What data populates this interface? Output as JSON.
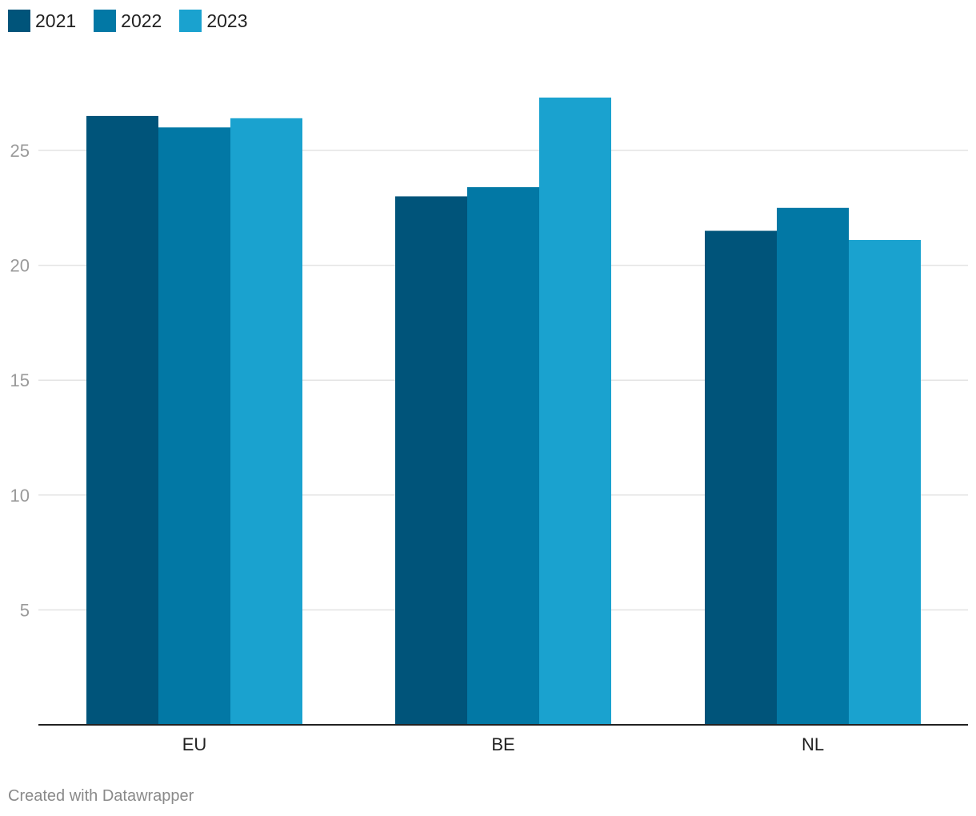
{
  "footer": {
    "credit": "Created with Datawrapper"
  },
  "chart_data": {
    "type": "bar",
    "categories": [
      "EU",
      "BE",
      "NL"
    ],
    "series": [
      {
        "name": "2021",
        "color": "#00547a",
        "values": [
          26.5,
          23.0,
          21.5
        ]
      },
      {
        "name": "2022",
        "color": "#0278a5",
        "values": [
          26.0,
          23.4,
          22.5
        ]
      },
      {
        "name": "2023",
        "color": "#1aa2cf",
        "values": [
          26.4,
          27.3,
          21.1
        ]
      }
    ],
    "yticks": [
      5,
      10,
      15,
      20,
      25
    ],
    "ylim": [
      0,
      27.7
    ],
    "title": "",
    "xlabel": "",
    "ylabel": "",
    "grid": true,
    "legend_position": "top-left"
  }
}
